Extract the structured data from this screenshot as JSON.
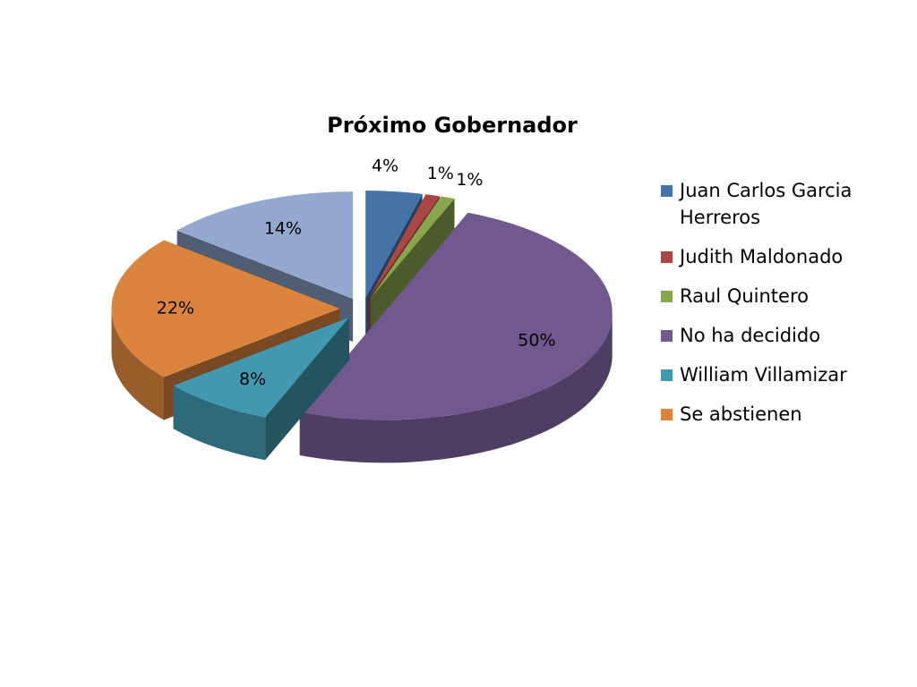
{
  "chart_data": {
    "type": "pie",
    "title": "Próximo Gobernador",
    "categories": [
      "Juan Carlos Garcia Herreros",
      "Judith Maldonado",
      "Raul Quintero",
      "No ha decidido",
      "William Villamizar",
      "Se abstienen",
      null
    ],
    "values": [
      4,
      1,
      1,
      50,
      8,
      22,
      14
    ],
    "value_labels": [
      "4%",
      "1%",
      "1%",
      "50%",
      "8%",
      "22%",
      "14%"
    ],
    "colors": [
      "#4572a7",
      "#aa4643",
      "#89a54e",
      "#71588f",
      "#4198af",
      "#db843d",
      "#93a9cf"
    ],
    "legend": "right"
  }
}
